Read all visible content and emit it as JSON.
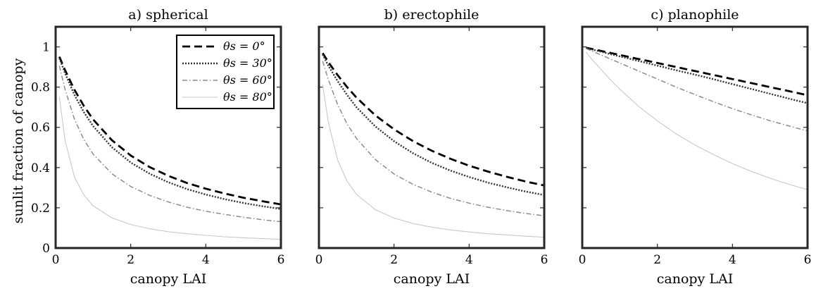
{
  "chart_data": [
    {
      "type": "line",
      "title": "a) spherical",
      "xlabel": "canopy LAI",
      "ylabel": "sunlit fraction of canopy",
      "xlim": [
        0,
        6
      ],
      "ylim": [
        0,
        1.1
      ],
      "xticks": [
        "0",
        "2",
        "4",
        "6"
      ],
      "yticks": [
        "0",
        "0.2",
        "0.4",
        "0.6",
        "0.8",
        "1"
      ],
      "legend": "top-right",
      "x": [
        0.1,
        0.25,
        0.5,
        0.75,
        1,
        1.5,
        2,
        2.5,
        3,
        3.5,
        4,
        4.5,
        5,
        5.5,
        6
      ],
      "series": [
        {
          "name": "θs = 0°",
          "values": [
            0.951,
            0.885,
            0.787,
            0.707,
            0.639,
            0.536,
            0.46,
            0.403,
            0.359,
            0.323,
            0.295,
            0.271,
            0.25,
            0.233,
            0.217
          ]
        },
        {
          "name": "θs = 30°",
          "values": [
            0.944,
            0.87,
            0.762,
            0.676,
            0.606,
            0.501,
            0.425,
            0.37,
            0.327,
            0.293,
            0.266,
            0.243,
            0.224,
            0.208,
            0.194
          ]
        },
        {
          "name": "θs = 60°",
          "values": [
            0.906,
            0.79,
            0.641,
            0.54,
            0.467,
            0.369,
            0.306,
            0.262,
            0.229,
            0.203,
            0.183,
            0.167,
            0.153,
            0.141,
            0.131
          ]
        },
        {
          "name": "θs = 80°",
          "values": [
            0.752,
            0.537,
            0.353,
            0.264,
            0.21,
            0.15,
            0.117,
            0.096,
            0.081,
            0.071,
            0.063,
            0.056,
            0.051,
            0.047,
            0.043
          ]
        }
      ]
    },
    {
      "type": "line",
      "title": "b) erectophile",
      "xlabel": "canopy LAI",
      "ylabel": "",
      "xlim": [
        0,
        6
      ],
      "ylim": [
        0,
        1.1
      ],
      "xticks": [
        "0",
        "2",
        "4",
        "6"
      ],
      "x": [
        0.1,
        0.25,
        0.5,
        0.75,
        1,
        1.5,
        2,
        2.5,
        3,
        3.5,
        4,
        4.5,
        5,
        5.5,
        6
      ],
      "series": [
        {
          "name": "θs = 0°",
          "values": [
            0.969,
            0.925,
            0.859,
            0.8,
            0.748,
            0.66,
            0.59,
            0.532,
            0.484,
            0.444,
            0.409,
            0.38,
            0.354,
            0.331,
            0.311
          ]
        },
        {
          "name": "θs = 30°",
          "values": [
            0.962,
            0.907,
            0.829,
            0.761,
            0.7,
            0.605,
            0.531,
            0.472,
            0.424,
            0.385,
            0.353,
            0.325,
            0.302,
            0.281,
            0.263
          ]
        },
        {
          "name": "θs = 60°",
          "values": [
            0.929,
            0.838,
            0.712,
            0.617,
            0.545,
            0.44,
            0.368,
            0.317,
            0.278,
            0.247,
            0.223,
            0.203,
            0.186,
            0.172,
            0.16
          ]
        },
        {
          "name": "θs = 80°",
          "values": [
            0.812,
            0.626,
            0.436,
            0.332,
            0.267,
            0.191,
            0.149,
            0.122,
            0.104,
            0.09,
            0.08,
            0.071,
            0.065,
            0.059,
            0.054
          ]
        }
      ]
    },
    {
      "type": "line",
      "title": "c) planophile",
      "xlabel": "canopy LAI",
      "ylabel": "",
      "xlim": [
        0,
        6
      ],
      "ylim": [
        0,
        1.1
      ],
      "xticks": [
        "0",
        "2",
        "4",
        "6"
      ],
      "x": [
        0.1,
        0.25,
        0.5,
        0.75,
        1,
        1.5,
        2,
        2.5,
        3,
        3.5,
        4,
        4.5,
        5,
        5.5,
        6
      ],
      "series": [
        {
          "name": "θs = 0°",
          "values": [
            0.996,
            0.99,
            0.98,
            0.97,
            0.96,
            0.94,
            0.92,
            0.9,
            0.88,
            0.86,
            0.84,
            0.82,
            0.8,
            0.78,
            0.76
          ]
        },
        {
          "name": "θs = 30°",
          "values": [
            0.995,
            0.988,
            0.976,
            0.964,
            0.953,
            0.93,
            0.907,
            0.884,
            0.862,
            0.839,
            0.815,
            0.791,
            0.767,
            0.743,
            0.72
          ]
        },
        {
          "name": "θs = 60°",
          "values": [
            0.992,
            0.98,
            0.96,
            0.94,
            0.92,
            0.88,
            0.84,
            0.8,
            0.763,
            0.727,
            0.693,
            0.662,
            0.633,
            0.607,
            0.582
          ]
        },
        {
          "name": "θs = 80°",
          "values": [
            0.975,
            0.94,
            0.888,
            0.836,
            0.79,
            0.705,
            0.632,
            0.568,
            0.512,
            0.464,
            0.42,
            0.381,
            0.347,
            0.317,
            0.29
          ]
        }
      ]
    }
  ],
  "styles": {
    "series_colors": [
      "#000000",
      "#333333",
      "#8c8c8c",
      "#c8c8c8"
    ],
    "series_dash": [
      "dashed",
      "dotted",
      "dash-dot",
      "solid"
    ]
  }
}
